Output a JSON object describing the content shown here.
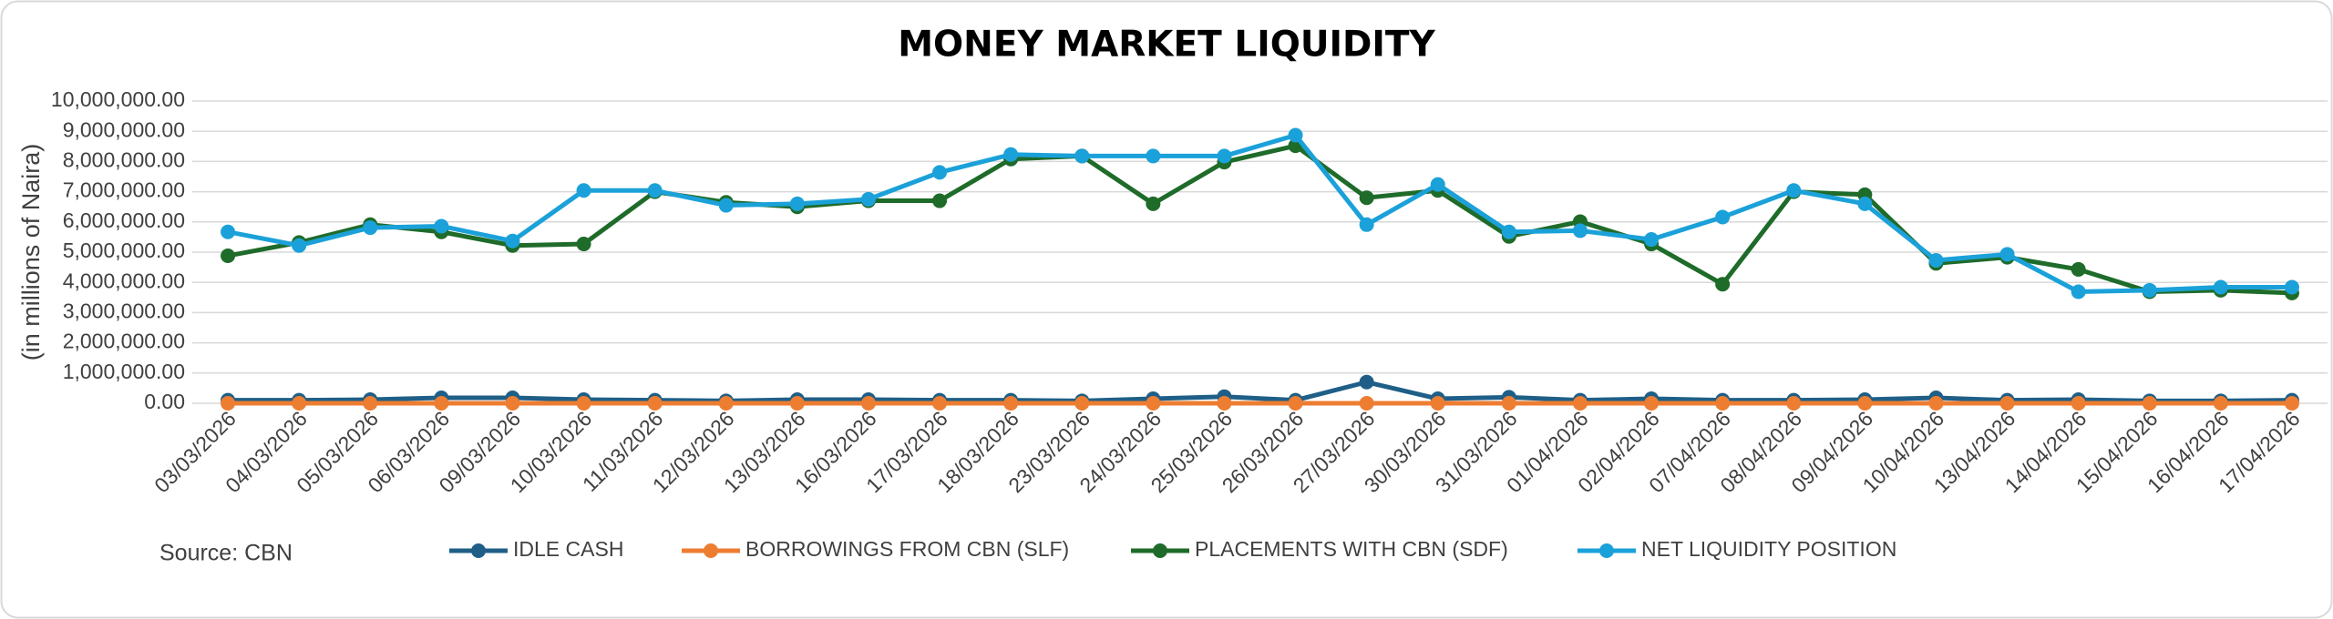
{
  "chart_data": {
    "type": "line",
    "title": "MONEY MARKET LIQUIDITY",
    "y_label": "(in millions of Naira)",
    "source": "Source: CBN",
    "categories": [
      "03/03/2026",
      "04/03/2026",
      "05/03/2026",
      "06/03/2026",
      "09/03/2026",
      "10/03/2026",
      "11/03/2026",
      "12/03/2026",
      "13/03/2026",
      "16/03/2026",
      "17/03/2026",
      "18/03/2026",
      "23/03/2026",
      "24/03/2026",
      "25/03/2026",
      "26/03/2026",
      "27/03/2026",
      "30/03/2026",
      "31/03/2026",
      "01/04/2026",
      "02/04/2026",
      "07/04/2026",
      "08/04/2026",
      "09/04/2026",
      "10/04/2026",
      "13/04/2026",
      "14/04/2026",
      "15/04/2026",
      "16/04/2026",
      "17/04/2026"
    ],
    "series": [
      {
        "name": "IDLE CASH",
        "color": "#1f5f87",
        "values": [
          100000,
          100000,
          120000,
          180000,
          180000,
          120000,
          100000,
          80000,
          120000,
          120000,
          100000,
          100000,
          80000,
          150000,
          220000,
          100000,
          700000,
          150000,
          200000,
          100000,
          150000,
          100000,
          100000,
          120000,
          180000,
          100000,
          120000,
          80000,
          80000,
          100000
        ]
      },
      {
        "name": "BORROWINGS FROM CBN (SLF)",
        "color": "#ed7d31",
        "values": [
          0,
          0,
          0,
          0,
          0,
          0,
          0,
          0,
          0,
          0,
          0,
          0,
          0,
          0,
          0,
          0,
          0,
          0,
          0,
          0,
          0,
          0,
          0,
          0,
          0,
          0,
          0,
          0,
          0,
          0
        ]
      },
      {
        "name": "PLACEMENTS WITH CBN (SDF)",
        "color": "#1e6b2a",
        "values": [
          4880000,
          5320000,
          5910000,
          5670000,
          5220000,
          5270000,
          7000000,
          6650000,
          6500000,
          6700000,
          6700000,
          8080000,
          8180000,
          6600000,
          7980000,
          8520000,
          6800000,
          7040000,
          5520000,
          6010000,
          5270000,
          3940000,
          7000000,
          6900000,
          4630000,
          4830000,
          4430000,
          3690000,
          3740000,
          3650000
        ]
      },
      {
        "name": "NET LIQUIDITY POSITION",
        "color": "#1ba1d9",
        "values": [
          5670000,
          5220000,
          5810000,
          5860000,
          5370000,
          7040000,
          7040000,
          6550000,
          6600000,
          6750000,
          7640000,
          8230000,
          8180000,
          8180000,
          8180000,
          8870000,
          5910000,
          7240000,
          5670000,
          5710000,
          5420000,
          6160000,
          7040000,
          6600000,
          4730000,
          4930000,
          3690000,
          3740000,
          3840000,
          3840000
        ]
      }
    ],
    "ylim": [
      0,
      10000000
    ],
    "yticks": [
      {
        "value": 0,
        "label": "0.00"
      },
      {
        "value": 1000000,
        "label": "1,000,000.00"
      },
      {
        "value": 2000000,
        "label": "2,000,000.00"
      },
      {
        "value": 3000000,
        "label": "3,000,000.00"
      },
      {
        "value": 4000000,
        "label": "4,000,000.00"
      },
      {
        "value": 5000000,
        "label": "5,000,000.00"
      },
      {
        "value": 6000000,
        "label": "6,000,000.00"
      },
      {
        "value": 7000000,
        "label": "7,000,000.00"
      },
      {
        "value": 8000000,
        "label": "8,000,000.00"
      },
      {
        "value": 9000000,
        "label": "9,000,000.00"
      },
      {
        "value": 10000000,
        "label": "10,000,000.00"
      }
    ],
    "grid": true,
    "legend": "bottom"
  }
}
